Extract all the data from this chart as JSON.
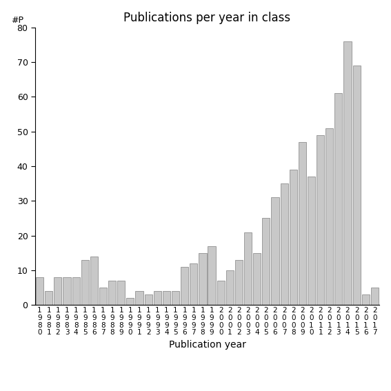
{
  "title": "Publications per year in class",
  "xlabel": "Publication year",
  "ylabel": "#P",
  "years": [
    "1980",
    "1981",
    "1982",
    "1983",
    "1984",
    "1985",
    "1986",
    "1987",
    "1988",
    "1989",
    "1990",
    "1991",
    "1992",
    "1993",
    "1994",
    "1995",
    "1996",
    "1997",
    "1998",
    "1999",
    "2000",
    "2001",
    "2002",
    "2003",
    "2004",
    "2005",
    "2006",
    "2007",
    "2008",
    "2009",
    "2010",
    "2011",
    "2012",
    "2013",
    "2014",
    "2015",
    "2016",
    "2017"
  ],
  "values": [
    8,
    4,
    8,
    8,
    8,
    13,
    14,
    5,
    7,
    7,
    2,
    4,
    3,
    4,
    4,
    4,
    11,
    12,
    15,
    17,
    7,
    10,
    13,
    21,
    15,
    25,
    31,
    35,
    39,
    47,
    37,
    49,
    51,
    61,
    76,
    69,
    3,
    5
  ],
  "bar_color": "#c8c8c8",
  "bar_edgecolor": "#909090",
  "ylim": [
    0,
    80
  ],
  "yticks": [
    0,
    10,
    20,
    30,
    40,
    50,
    60,
    70,
    80
  ],
  "bg_color": "#ffffff",
  "title_fontsize": 12,
  "axis_fontsize": 10,
  "tick_fontsize": 9,
  "xtick_fontsize": 7.5
}
